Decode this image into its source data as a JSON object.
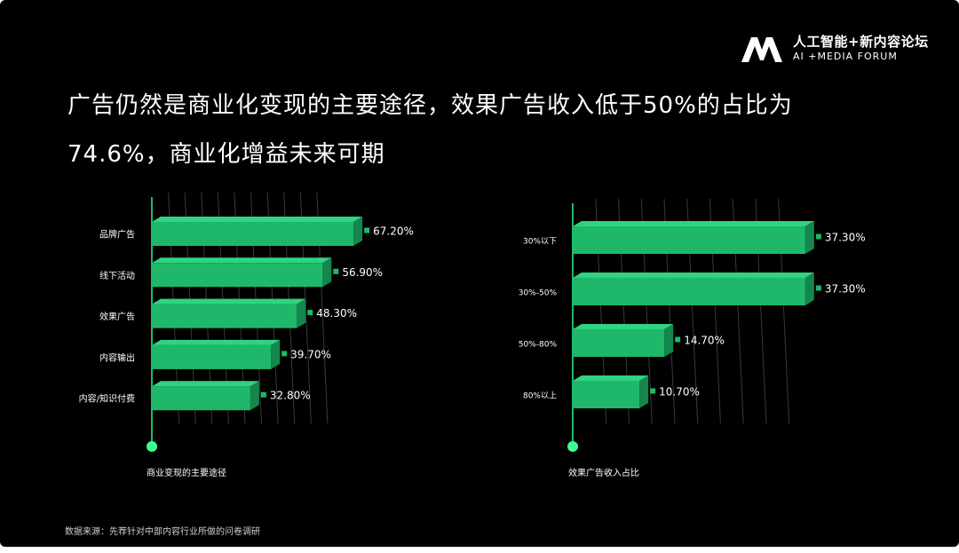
{
  "slide": {
    "logo_cn": "人工智能+新内容论坛",
    "logo_en": "AI +MEDIA FORUM",
    "headline_line1": "广告仍然是商业化变现的主要途径，效果广告收入低于50%的占比为",
    "headline_line2": "74.6%，商业化增益未来可期",
    "source": "数据来源：先荐针对中部内容行业所做的问卷调研"
  },
  "colors": {
    "bar_face": "#1fb86b",
    "bar_top": "#2ed47f",
    "bar_side": "#14874c",
    "marker": "#1fb86b",
    "dot": "#3dff8f",
    "text": "#ffffff",
    "grid": "#3a3a3a",
    "background": "#000000"
  },
  "chart_data": [
    {
      "type": "bar",
      "orientation": "horizontal",
      "title": "商业变现的主要途径",
      "categories": [
        "品牌广告",
        "线下活动",
        "效果广告",
        "内容输出",
        "内容/知识付费"
      ],
      "values": [
        67.2,
        56.9,
        48.3,
        39.7,
        32.8
      ],
      "labels": [
        "67.20%",
        "56.90%",
        "48.30%",
        "39.70%",
        "32.80%"
      ],
      "xlim": [
        0,
        100
      ],
      "grid": true
    },
    {
      "type": "bar",
      "orientation": "horizontal",
      "title": "效果广告收入占比",
      "categories": [
        "30%以下",
        "30%-50%",
        "50%-80%",
        "80%以上"
      ],
      "values": [
        37.3,
        37.3,
        14.7,
        10.7
      ],
      "labels": [
        "37.30%",
        "37.30%",
        "14.70%",
        "10.70%"
      ],
      "xlim": [
        0,
        50
      ],
      "grid": true
    }
  ]
}
